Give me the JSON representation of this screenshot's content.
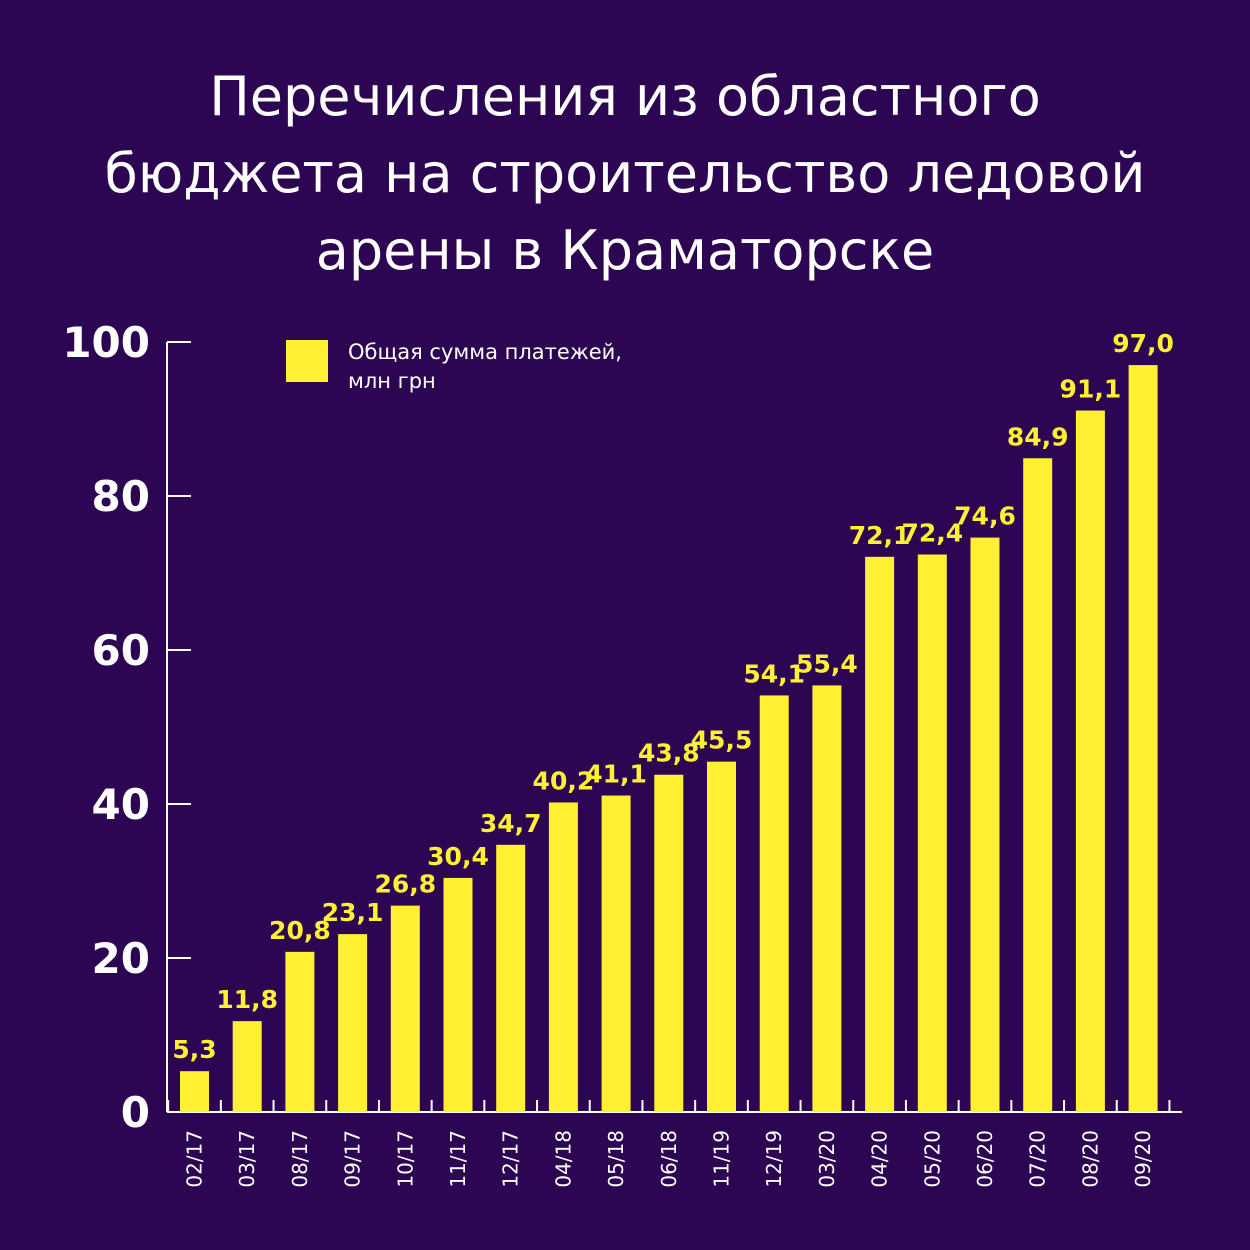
{
  "title_lines": [
    "Перечисления из областного",
    "бюджета на строительство ледовой",
    "арены в Краматорске"
  ],
  "colors": {
    "background": "#2c0653",
    "bar": "#fff033",
    "axis": "#ffffff",
    "text": "#ffffff"
  },
  "chart_data": {
    "type": "bar",
    "title": "Перечисления из областного бюджета на строительство ледовой арены в Краматорске",
    "categories": [
      "02/17",
      "03/17",
      "08/17",
      "09/17",
      "10/17",
      "11/17",
      "12/17",
      "04/18",
      "05/18",
      "06/18",
      "11/19",
      "12/19",
      "03/20",
      "04/20",
      "05/20",
      "06/20",
      "07/20",
      "08/20",
      "09/20"
    ],
    "series": [
      {
        "name": "Общая сумма платежей, млн грн",
        "values": [
          5.3,
          11.8,
          20.8,
          23.1,
          26.8,
          30.4,
          34.7,
          40.2,
          41.1,
          43.8,
          45.5,
          54.1,
          55.4,
          72.1,
          72.4,
          74.6,
          84.9,
          91.1,
          97.0
        ],
        "labels": [
          "5,3",
          "11,8",
          "20,8",
          "23,1",
          "26,8",
          "30,4",
          "34,7",
          "40,2",
          "41,1",
          "43,8",
          "45,5",
          "54,1",
          "55,4",
          "72,1",
          "72,4",
          "74,6",
          "84,9",
          "91,1",
          "97,0"
        ]
      }
    ],
    "ylim": [
      0,
      100
    ],
    "yticks": [
      0,
      20,
      40,
      60,
      80,
      100
    ],
    "grid": false,
    "legend": {
      "position": "top-left",
      "lines": [
        "Общая сумма платежей,",
        "млн грн"
      ]
    },
    "xlabel": "",
    "ylabel": ""
  }
}
